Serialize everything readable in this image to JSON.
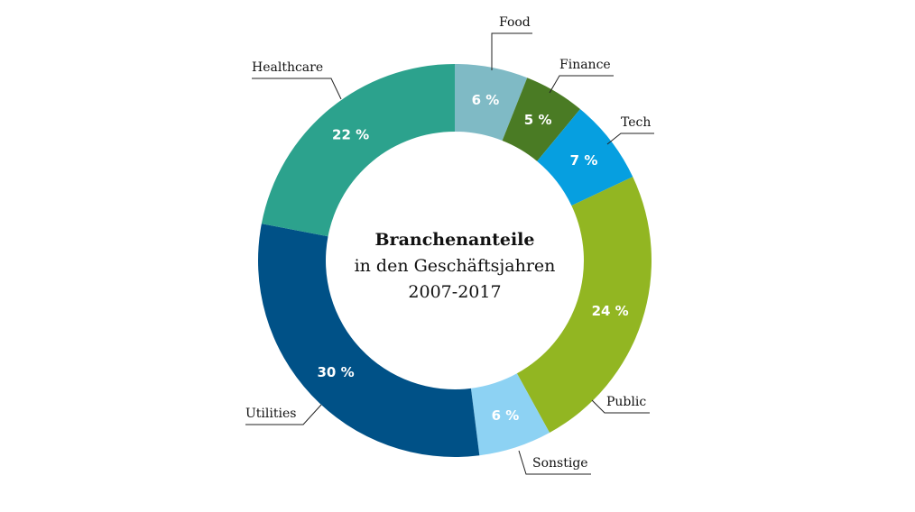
{
  "chart_data": {
    "type": "pie",
    "variant": "donut",
    "title": "Branchenanteile",
    "subtitle_lines": [
      "in den Geschäftsjahren",
      "2007-2017"
    ],
    "unit": "%",
    "start": "top, clockwise",
    "slices": [
      {
        "label": "Food",
        "value": 6,
        "value_label": "6 %",
        "color": "#7fbac5"
      },
      {
        "label": "Finance",
        "value": 5,
        "value_label": "5 %",
        "color": "#4a7b24"
      },
      {
        "label": "Tech",
        "value": 7,
        "value_label": "7 %",
        "color": "#069fe0"
      },
      {
        "label": "Public",
        "value": 24,
        "value_label": "24 %",
        "color": "#92b622"
      },
      {
        "label": "Sonstige",
        "value": 6,
        "value_label": "6 %",
        "color": "#8dd2f3"
      },
      {
        "label": "Utilities",
        "value": 30,
        "value_label": "30 %",
        "color": "#005187"
      },
      {
        "label": "Healthcare",
        "value": 22,
        "value_label": "22 %",
        "color": "#2ca28d"
      }
    ]
  }
}
